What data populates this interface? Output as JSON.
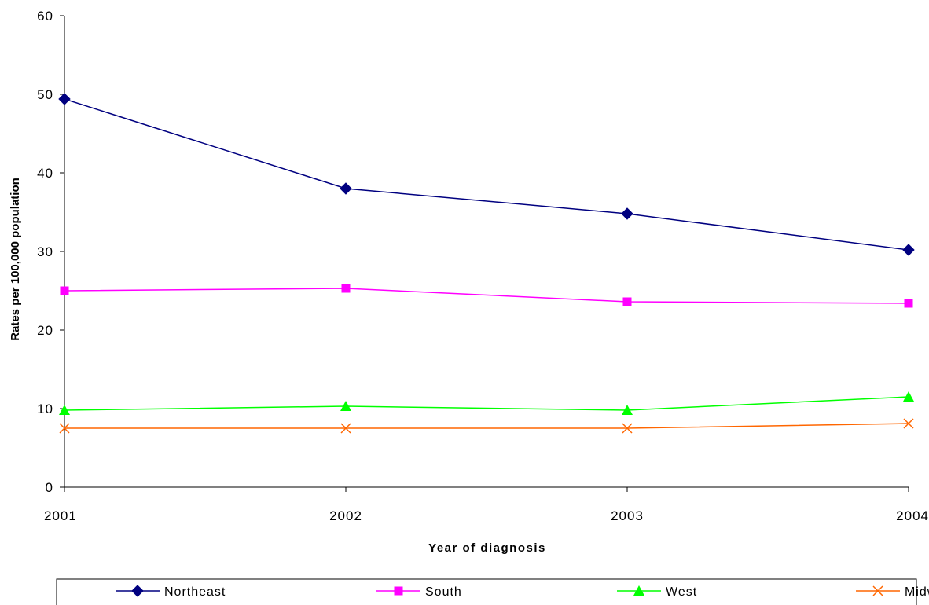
{
  "chart_data": {
    "type": "line",
    "title": "",
    "xlabel": "Year of diagnosis",
    "ylabel": "Rates per 100,000 population",
    "categories": [
      "2001",
      "2002",
      "2003",
      "2004"
    ],
    "ylim": [
      0,
      60
    ],
    "yticks": [
      "0",
      "10",
      "20",
      "30",
      "40",
      "50",
      "60"
    ],
    "grid": false,
    "legend_position": "bottom",
    "series": [
      {
        "name": "Northeast",
        "values": [
          49.4,
          38.0,
          34.8,
          30.2
        ],
        "color": "#000080",
        "marker": "diamond"
      },
      {
        "name": "South",
        "values": [
          25.0,
          25.3,
          23.6,
          23.4
        ],
        "color": "#ff00ff",
        "marker": "square"
      },
      {
        "name": "West",
        "values": [
          9.8,
          10.3,
          9.8,
          11.5
        ],
        "color": "#00ff00",
        "marker": "triangle"
      },
      {
        "name": "Midwest",
        "values": [
          7.5,
          7.5,
          7.5,
          8.1
        ],
        "color": "#ff6600",
        "marker": "x"
      }
    ]
  }
}
